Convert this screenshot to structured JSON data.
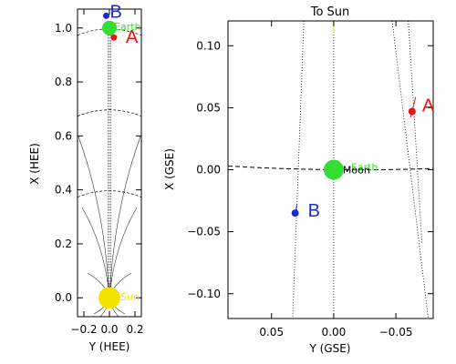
{
  "colors": {
    "sun": "#f2e400",
    "earth": "#33dd33",
    "A": "#ee1111",
    "B": "#1a2ad0",
    "axes": "#000000"
  },
  "chart_data": [
    {
      "type": "scatter",
      "panel": "left",
      "xlabel": "Y (HEE)",
      "ylabel": "X (HEE)",
      "xlim": [
        -0.25,
        0.25
      ],
      "ylim": [
        1.07,
        -0.07
      ],
      "x_ticks": [
        -0.2,
        0.0,
        0.2
      ],
      "x_tick_labels": [
        "−0.2",
        "0.0",
        "0.2"
      ],
      "y_ticks": [
        0.0,
        0.2,
        0.4,
        0.6,
        0.8,
        1.0
      ],
      "y_tick_labels": [
        "0.0",
        "0.2",
        "0.4",
        "0.6",
        "0.8",
        "1.0"
      ],
      "grid": false,
      "bodies": [
        {
          "name": "Sun",
          "label": "Sun",
          "y": 0.0,
          "x": 0.0,
          "color": "sun"
        },
        {
          "name": "Earth",
          "label": "Earth",
          "y": 0.0,
          "x": 1.0,
          "color": "earth"
        },
        {
          "name": "A",
          "label": "A",
          "y": 0.035,
          "x": 0.965,
          "color": "A"
        },
        {
          "name": "B",
          "label": "B",
          "y": -0.025,
          "x": 1.045,
          "color": "B"
        }
      ]
    },
    {
      "type": "scatter",
      "panel": "right",
      "title": "To Sun",
      "xlabel": "Y (GSE)",
      "ylabel": "X (GSE)",
      "xlim": [
        0.085,
        -0.08
      ],
      "ylim": [
        -0.12,
        0.12
      ],
      "x_ticks": [
        0.05,
        0.0,
        -0.05
      ],
      "x_tick_labels": [
        "0.05",
        "0.00",
        "−0.05"
      ],
      "y_ticks": [
        0.1,
        0.05,
        0.0,
        -0.05,
        -0.1
      ],
      "y_tick_labels": [
        "0.10",
        "0.05",
        "0.00",
        "−0.05",
        "−0.10"
      ],
      "grid": false,
      "bodies": [
        {
          "name": "Earth",
          "label": "Earth",
          "y": 0.0,
          "x": 0.0,
          "color": "earth"
        },
        {
          "name": "Moon",
          "label": "Moon",
          "y": 0.0,
          "x": 0.0,
          "color": "axes"
        },
        {
          "name": "A",
          "label": "A",
          "y": -0.063,
          "x": 0.047,
          "color": "A"
        },
        {
          "name": "B",
          "label": "B",
          "y": 0.031,
          "x": -0.035,
          "color": "B"
        }
      ]
    }
  ]
}
